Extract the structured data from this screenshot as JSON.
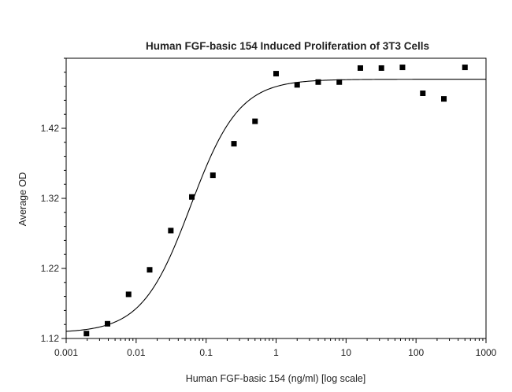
{
  "chart_data": {
    "type": "scatter",
    "title": "Human FGF-basic 154 Induced Proliferation of 3T3 Cells",
    "xlabel": "Human FGF-basic 154 (ng/ml) [log scale]",
    "ylabel": "Average OD",
    "x_scale": "log",
    "xlim": [
      0.001,
      1000
    ],
    "ylim": [
      1.12,
      1.52
    ],
    "grid": false,
    "legend": "none",
    "x_ticks": [
      {
        "value": 0.001,
        "label": "0.001"
      },
      {
        "value": 0.01,
        "label": "0.01"
      },
      {
        "value": 0.1,
        "label": "0.1"
      },
      {
        "value": 1,
        "label": "1"
      },
      {
        "value": 10,
        "label": "10"
      },
      {
        "value": 100,
        "label": "100"
      },
      {
        "value": 1000,
        "label": "1000"
      }
    ],
    "y_ticks": [
      {
        "value": 1.12,
        "label": "1.12"
      },
      {
        "value": 1.22,
        "label": "1.22"
      },
      {
        "value": 1.32,
        "label": "1.32"
      },
      {
        "value": 1.42,
        "label": "1.42"
      }
    ],
    "series": [
      {
        "type": "scatter",
        "marker": "square",
        "color": "#000000",
        "points": [
          {
            "x": 0.00195,
            "y": 1.127
          },
          {
            "x": 0.0039,
            "y": 1.141
          },
          {
            "x": 0.0078,
            "y": 1.183
          },
          {
            "x": 0.0156,
            "y": 1.218
          },
          {
            "x": 0.0313,
            "y": 1.274
          },
          {
            "x": 0.0625,
            "y": 1.322
          },
          {
            "x": 0.125,
            "y": 1.353
          },
          {
            "x": 0.25,
            "y": 1.398
          },
          {
            "x": 0.5,
            "y": 1.43
          },
          {
            "x": 1,
            "y": 1.498
          },
          {
            "x": 2,
            "y": 1.482
          },
          {
            "x": 4,
            "y": 1.486
          },
          {
            "x": 8,
            "y": 1.486
          },
          {
            "x": 16,
            "y": 1.506
          },
          {
            "x": 32,
            "y": 1.506
          },
          {
            "x": 64,
            "y": 1.507
          },
          {
            "x": 125,
            "y": 1.47
          },
          {
            "x": 250,
            "y": 1.462
          },
          {
            "x": 500,
            "y": 1.507
          }
        ]
      },
      {
        "type": "line",
        "fit": "4-parameter logistic",
        "color": "#000000",
        "params": {
          "bottom": 1.128,
          "top": 1.49,
          "ec50": 0.06,
          "hill": 1.25
        }
      }
    ]
  }
}
